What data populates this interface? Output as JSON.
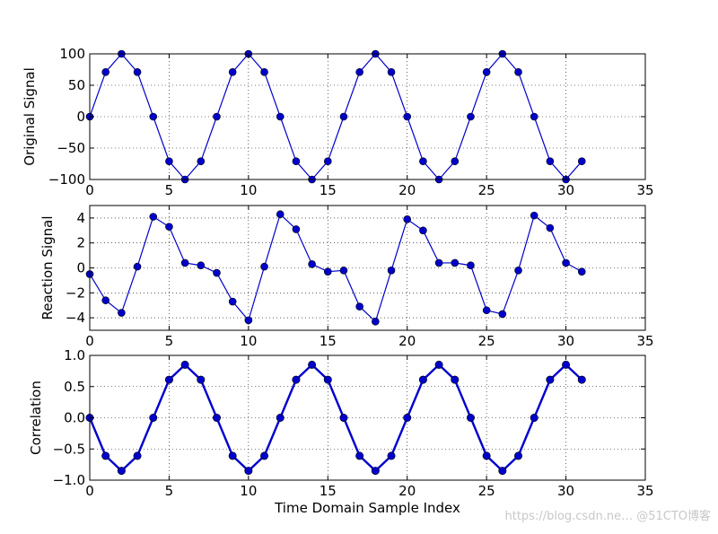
{
  "chart_data": [
    {
      "type": "line",
      "ylabel": "Original Signal",
      "xlim": [
        0,
        35
      ],
      "ylim": [
        -100,
        100
      ],
      "xticks": [
        0,
        5,
        10,
        15,
        20,
        25,
        30,
        35
      ],
      "yticks": [
        -100,
        -50,
        0,
        50,
        100
      ],
      "grid": true,
      "series": [
        {
          "color": "#0000cc",
          "marker": "circle",
          "x": [
            0,
            1,
            2,
            3,
            4,
            5,
            6,
            7,
            8,
            9,
            10,
            11,
            12,
            13,
            14,
            15,
            16,
            17,
            18,
            19,
            20,
            21,
            22,
            23,
            24,
            25,
            26,
            27,
            28,
            29,
            30,
            31
          ],
          "y": [
            0,
            71,
            100,
            71,
            0,
            -71,
            -100,
            -71,
            0,
            71,
            100,
            71,
            0,
            -71,
            -100,
            -71,
            0,
            71,
            100,
            71,
            0,
            -71,
            -100,
            -71,
            0,
            71,
            100,
            71,
            0,
            -71,
            -100,
            -71
          ]
        }
      ]
    },
    {
      "type": "line",
      "ylabel": "Reaction Signal",
      "xlim": [
        0,
        35
      ],
      "ylim": [
        -5,
        5
      ],
      "xticks": [
        0,
        5,
        10,
        15,
        20,
        25,
        30,
        35
      ],
      "yticks": [
        -4,
        -2,
        0,
        2,
        4
      ],
      "grid": true,
      "series": [
        {
          "color": "#0000cc",
          "marker": "circle",
          "x": [
            0,
            1,
            2,
            3,
            4,
            5,
            6,
            7,
            8,
            9,
            10,
            11,
            12,
            13,
            14,
            15,
            16,
            17,
            18,
            19,
            20,
            21,
            22,
            23,
            24,
            25,
            26,
            27,
            28,
            29,
            30,
            31
          ],
          "y": [
            -0.5,
            -2.6,
            -3.6,
            0.1,
            4.1,
            3.3,
            0.4,
            0.2,
            -0.4,
            -2.7,
            -4.2,
            0.1,
            4.3,
            3.1,
            0.3,
            -0.3,
            -0.2,
            -3.1,
            -4.3,
            -0.2,
            3.9,
            3.0,
            0.4,
            0.4,
            0.2,
            -3.4,
            -3.7,
            -0.2,
            4.2,
            3.2,
            0.4,
            -0.3
          ]
        }
      ]
    },
    {
      "type": "line",
      "ylabel": "Correlation",
      "xlabel": "Time Domain Sample Index",
      "xlim": [
        0,
        35
      ],
      "ylim": [
        -1.0,
        1.0
      ],
      "xticks": [
        0,
        5,
        10,
        15,
        20,
        25,
        30,
        35
      ],
      "yticks": [
        -1.0,
        -0.5,
        0.0,
        0.5,
        1.0
      ],
      "ytick_decimals": 1,
      "grid": true,
      "series": [
        {
          "color": "#0000cc",
          "marker": "circle",
          "thick": true,
          "x": [
            0,
            1,
            2,
            3,
            4,
            5,
            6,
            7,
            8,
            9,
            10,
            11,
            12,
            13,
            14,
            15,
            16,
            17,
            18,
            19,
            20,
            21,
            22,
            23,
            24,
            25,
            26,
            27,
            28,
            29,
            30,
            31
          ],
          "y": [
            0,
            -0.61,
            -0.85,
            -0.61,
            0,
            0.61,
            0.85,
            0.61,
            0,
            -0.61,
            -0.85,
            -0.61,
            0,
            0.61,
            0.85,
            0.61,
            0,
            -0.61,
            -0.85,
            -0.61,
            0,
            0.61,
            0.85,
            0.61,
            0,
            -0.61,
            -0.85,
            -0.61,
            0,
            0.61,
            0.85,
            0.61
          ]
        }
      ]
    }
  ],
  "watermark": "https://blog.csdn.ne… @51CTO博客"
}
